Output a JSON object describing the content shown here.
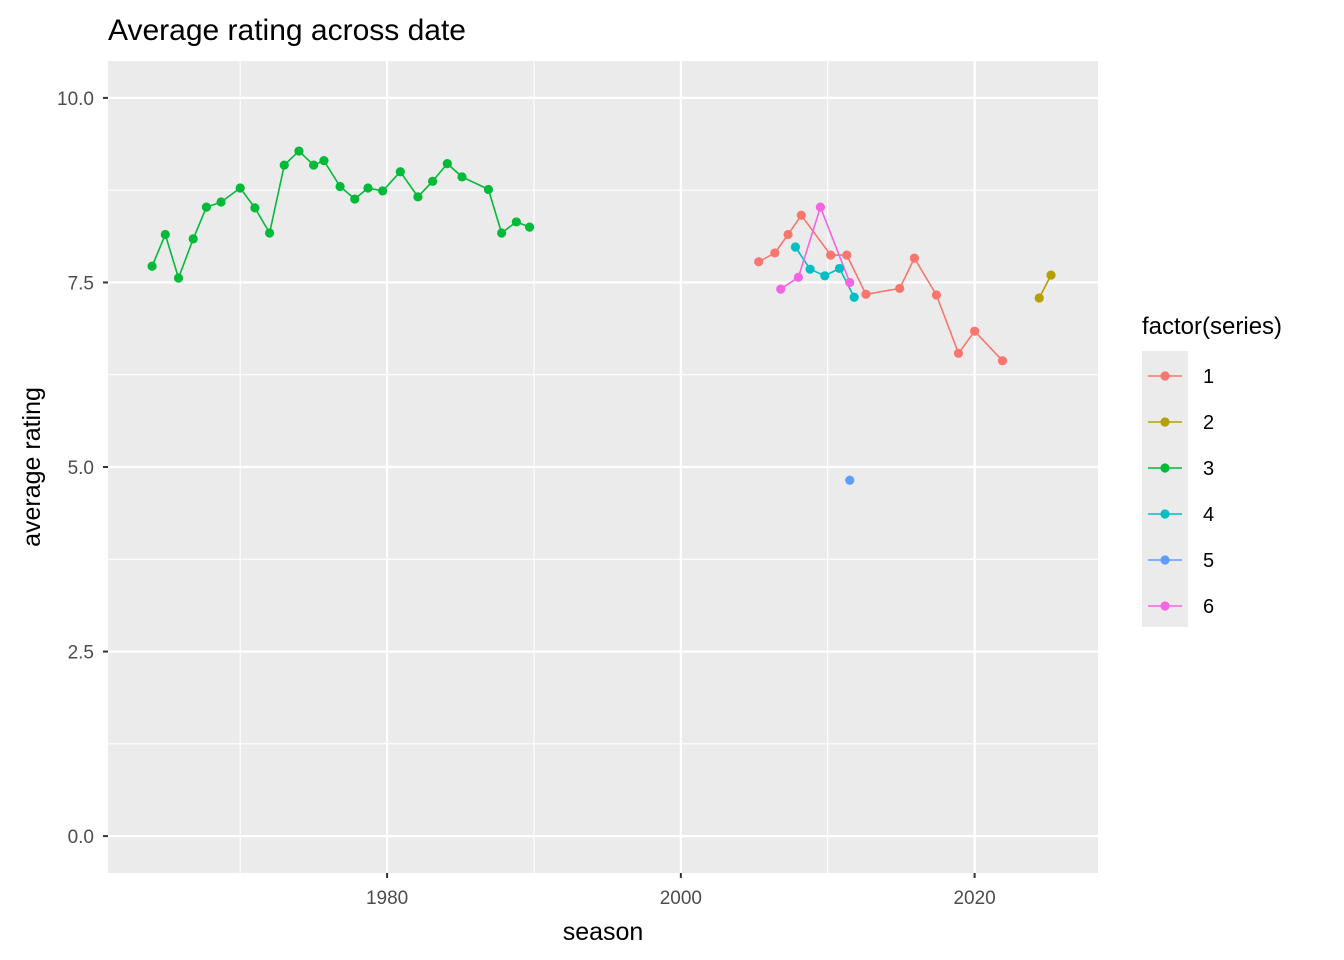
{
  "chart_data": {
    "type": "line",
    "title": "Average rating across date",
    "xlabel": "season",
    "ylabel": "average rating",
    "xlim": [
      1961,
      2028.4
    ],
    "ylim": [
      -0.5,
      10.5
    ],
    "x_ticks": [
      1980,
      2000,
      2020
    ],
    "y_ticks": [
      0,
      2.5,
      5,
      7.5,
      10
    ],
    "y_tick_labels": [
      "0.0",
      "2.5",
      "5.0",
      "7.5",
      "10.0"
    ],
    "grid": true,
    "panel_background": "#ebebeb",
    "legend": {
      "title": "factor(series)",
      "position": "right"
    },
    "series": [
      {
        "name": "1",
        "color": "#F8766D",
        "points": [
          [
            2005.3,
            7.78
          ],
          [
            2006.4,
            7.9
          ],
          [
            2007.3,
            8.15
          ],
          [
            2008.2,
            8.41
          ],
          [
            2010.2,
            7.87
          ],
          [
            2011.3,
            7.87
          ],
          [
            2012.6,
            7.34
          ],
          [
            2014.9,
            7.42
          ],
          [
            2015.9,
            7.83
          ],
          [
            2017.4,
            7.33
          ],
          [
            2018.9,
            6.54
          ],
          [
            2020.0,
            6.84
          ],
          [
            2021.9,
            6.44
          ]
        ]
      },
      {
        "name": "2",
        "color": "#B79F00",
        "points": [
          [
            2024.4,
            7.29
          ],
          [
            2025.2,
            7.6
          ]
        ]
      },
      {
        "name": "3",
        "color": "#00BA38",
        "points": [
          [
            1964.0,
            7.72
          ],
          [
            1964.9,
            8.15
          ],
          [
            1965.8,
            7.56
          ],
          [
            1966.8,
            8.09
          ],
          [
            1967.7,
            8.52
          ],
          [
            1968.7,
            8.59
          ],
          [
            1970.0,
            8.78
          ],
          [
            1971.0,
            8.51
          ],
          [
            1972.0,
            8.17
          ],
          [
            1973.0,
            9.09
          ],
          [
            1974.0,
            9.28
          ],
          [
            1975.0,
            9.09
          ],
          [
            1975.7,
            9.15
          ],
          [
            1976.8,
            8.8
          ],
          [
            1977.8,
            8.63
          ],
          [
            1978.7,
            8.78
          ],
          [
            1979.7,
            8.74
          ],
          [
            1980.9,
            9.0
          ],
          [
            1982.1,
            8.66
          ],
          [
            1983.1,
            8.87
          ],
          [
            1984.1,
            9.11
          ],
          [
            1985.1,
            8.93
          ],
          [
            1986.9,
            8.76
          ],
          [
            1987.8,
            8.17
          ],
          [
            1988.8,
            8.32
          ],
          [
            1989.7,
            8.25
          ]
        ]
      },
      {
        "name": "4",
        "color": "#00BFC4",
        "points": [
          [
            2007.8,
            7.98
          ],
          [
            2008.8,
            7.68
          ],
          [
            2009.8,
            7.59
          ],
          [
            2010.8,
            7.69
          ],
          [
            2011.8,
            7.3
          ]
        ]
      },
      {
        "name": "5",
        "color": "#619CFF",
        "points": [
          [
            2011.5,
            4.82
          ]
        ]
      },
      {
        "name": "6",
        "color": "#F564E3",
        "points": [
          [
            2006.8,
            7.41
          ],
          [
            2008.0,
            7.57
          ],
          [
            2009.5,
            8.52
          ],
          [
            2011.5,
            7.5
          ]
        ]
      }
    ]
  }
}
